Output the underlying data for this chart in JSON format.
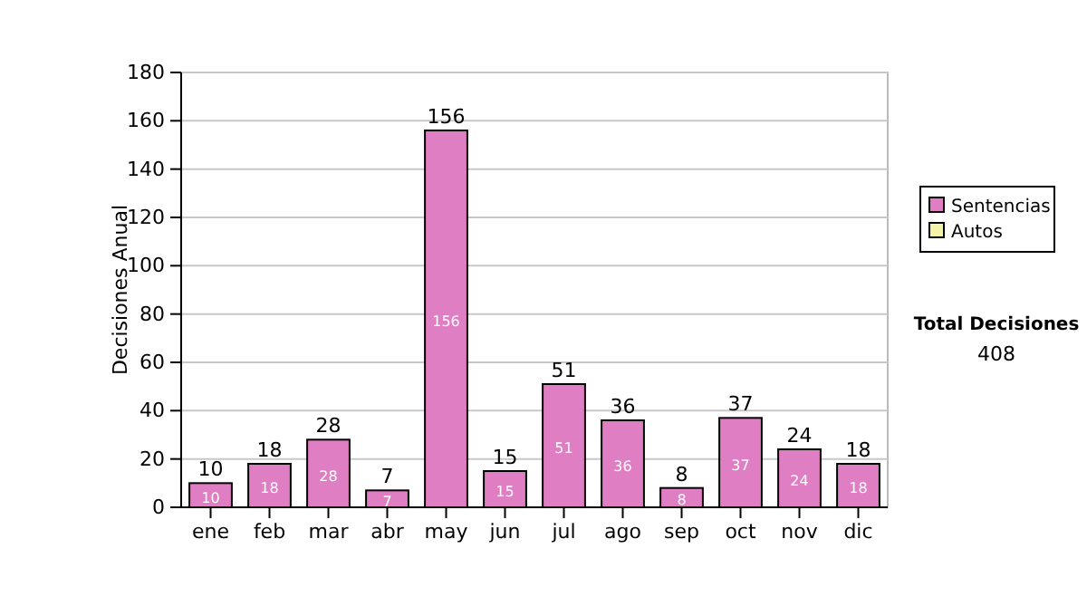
{
  "chart_data": {
    "type": "bar",
    "ylabel": "Decisiones Anual",
    "categories": [
      "ene",
      "feb",
      "mar",
      "abr",
      "may",
      "jun",
      "jul",
      "ago",
      "sep",
      "oct",
      "nov",
      "dic"
    ],
    "series": [
      {
        "name": "Sentencias",
        "color": "#e07ec4",
        "values": [
          10,
          18,
          28,
          7,
          156,
          15,
          51,
          36,
          8,
          37,
          24,
          18
        ],
        "value_labels": [
          "10",
          "18",
          "28",
          "7",
          "156",
          "15",
          "51",
          "36",
          "8",
          "37",
          "24",
          "18"
        ]
      },
      {
        "name": "Autos",
        "color": "#f2f2a8",
        "values": [
          null,
          null,
          null,
          null,
          null,
          null,
          null,
          null,
          null,
          null,
          null,
          null
        ]
      }
    ],
    "stacked": true,
    "totals": [
      "10",
      "18",
      "28",
      "7",
      "156",
      "15",
      "51",
      "36",
      "8",
      "37",
      "24",
      "18"
    ],
    "ylim": [
      0,
      180
    ],
    "yticks": [
      0,
      20,
      40,
      60,
      80,
      100,
      120,
      140,
      160,
      180
    ],
    "grid": "y",
    "legend": "right",
    "annotations": [
      "Total Decisiones",
      "408"
    ]
  }
}
